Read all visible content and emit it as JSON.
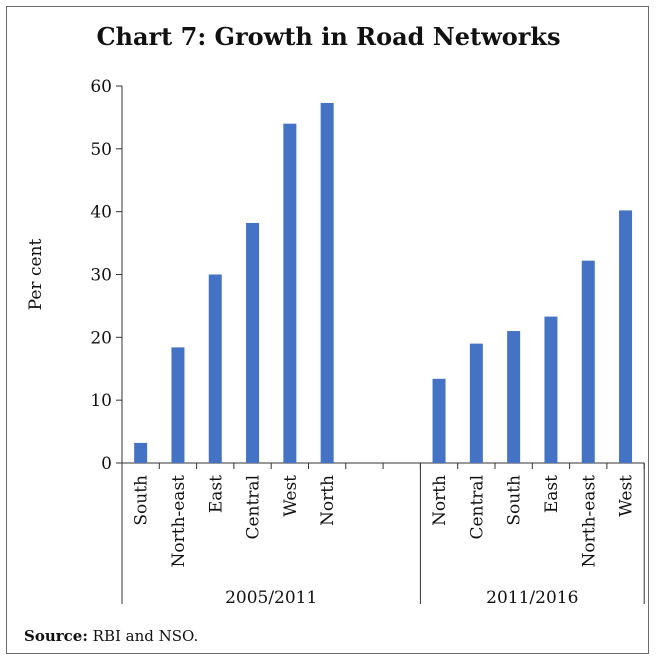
{
  "title": "Chart 7: Growth in Road Networks",
  "source_label": "Source:",
  "source_text": "RBI and NSO.",
  "chart_data": {
    "type": "bar",
    "ylabel": "Per cent",
    "ylim": [
      0,
      60
    ],
    "yticks": [
      0,
      10,
      20,
      30,
      40,
      50,
      60
    ],
    "bar_color": "#4472c4",
    "groups": [
      {
        "name": "2005/2011",
        "categories": [
          "South",
          "North-east",
          "East",
          "Central",
          "West",
          "North"
        ],
        "values": [
          3.2,
          18.4,
          30.0,
          38.2,
          54.0,
          57.3
        ]
      },
      {
        "name": "2011/2016",
        "categories": [
          "North",
          "Central",
          "South",
          "East",
          "North-east",
          "West"
        ],
        "values": [
          13.4,
          19.0,
          21.0,
          23.3,
          32.2,
          40.2
        ]
      }
    ]
  }
}
